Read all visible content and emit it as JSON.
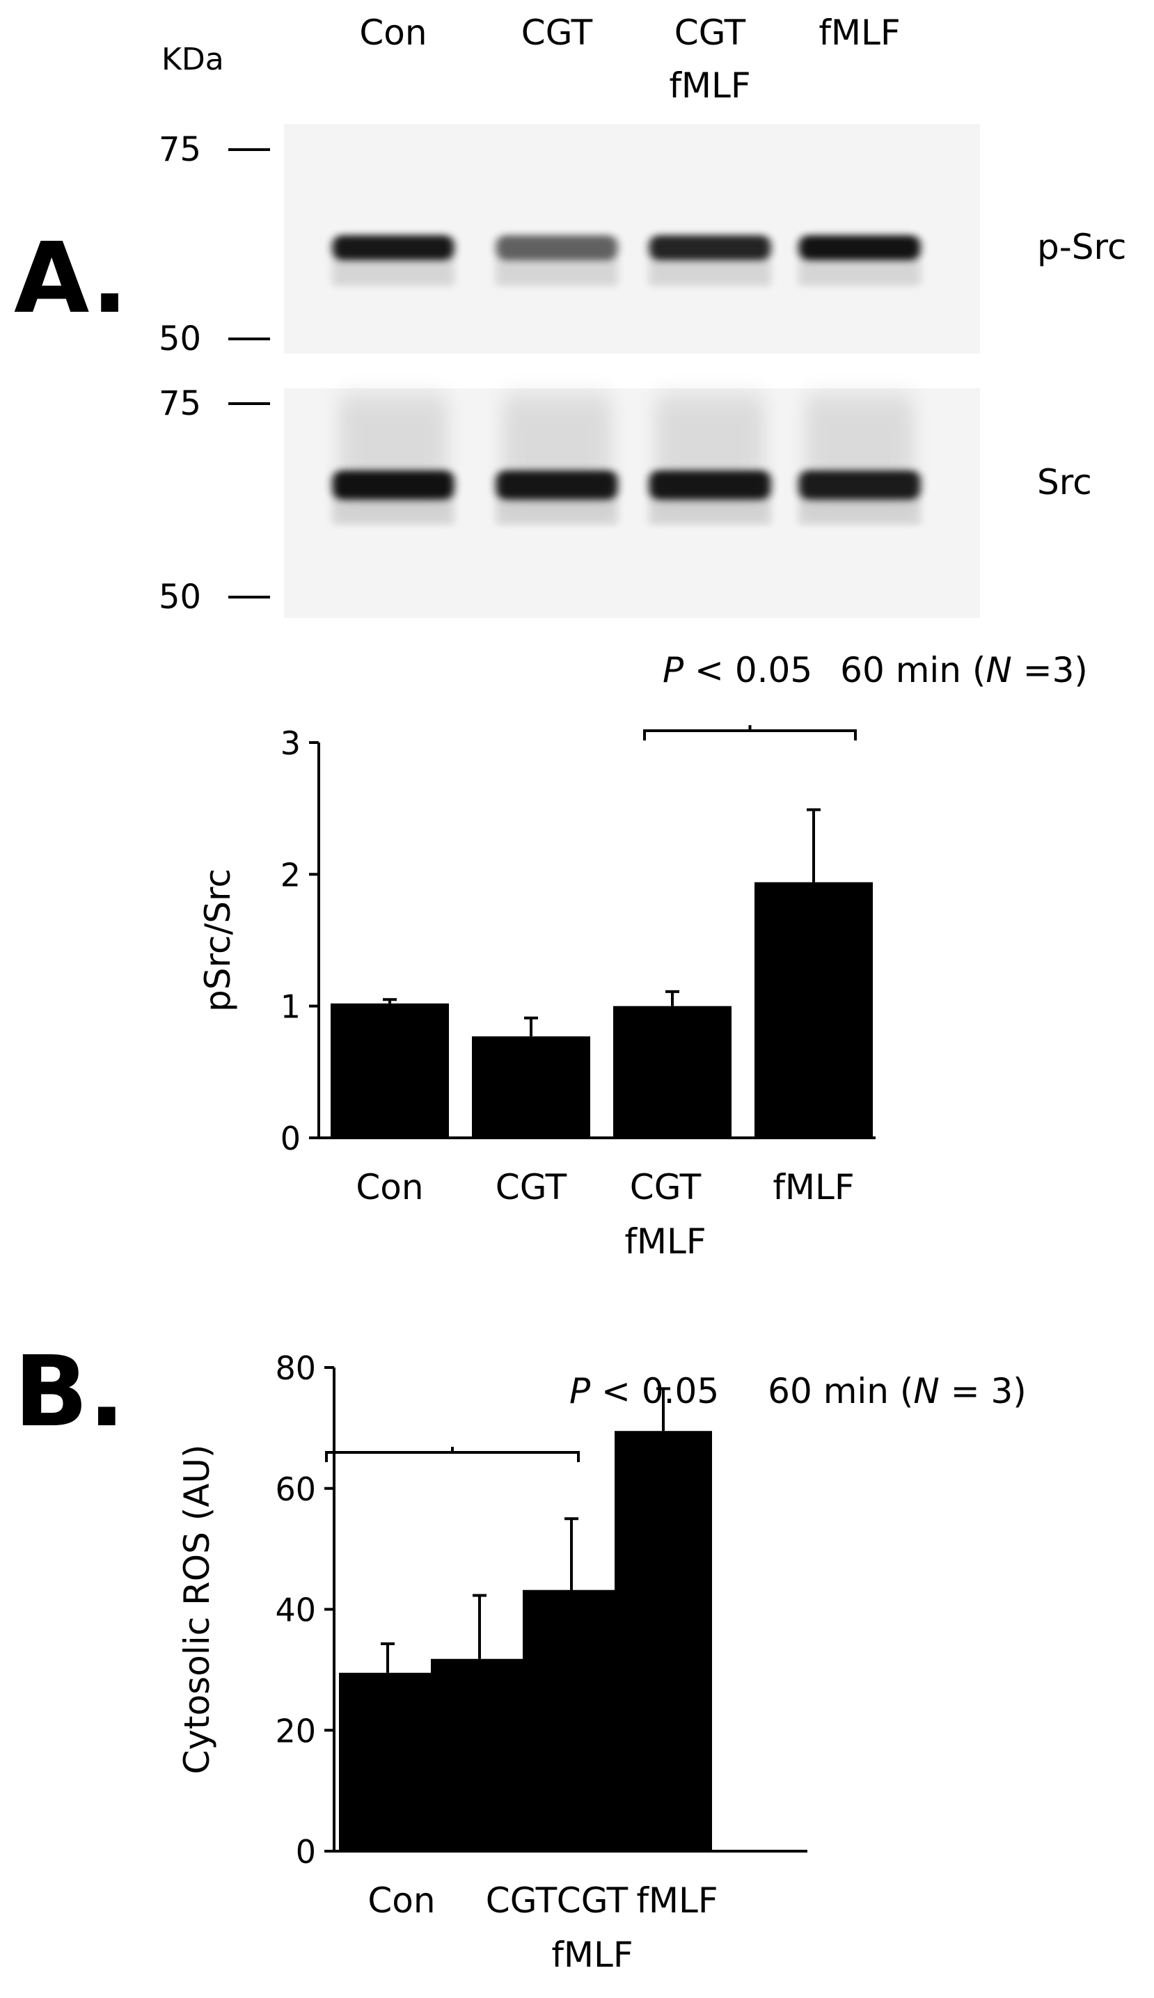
{
  "panel_a": {
    "label": "A.",
    "blot": {
      "kda_label": "KDa",
      "lanes": [
        {
          "line1": "Con",
          "line2": ""
        },
        {
          "line1": "CGT",
          "line2": ""
        },
        {
          "line1": "CGT",
          "line2": "fMLF"
        },
        {
          "line1": "fMLF",
          "line2": ""
        }
      ],
      "strips": [
        {
          "name": "p-Src",
          "marker_top": "75",
          "marker_bottom": "50",
          "band_intensity": [
            0.9,
            0.6,
            0.85,
            0.92
          ]
        },
        {
          "name": "Src",
          "marker_top": "75",
          "marker_bottom": "50",
          "band_intensity": [
            0.92,
            0.9,
            0.9,
            0.88
          ]
        }
      ]
    }
  },
  "panel_b": {
    "label": "B."
  },
  "chart_data": [
    {
      "type": "bar",
      "categories": [
        {
          "line1": "Con",
          "line2": ""
        },
        {
          "line1": "CGT",
          "line2": ""
        },
        {
          "line1": "CGT",
          "line2": "fMLF"
        },
        {
          "line1": "fMLF",
          "line2": ""
        }
      ],
      "values": [
        1.02,
        0.77,
        1.0,
        1.94
      ],
      "errors": [
        0.03,
        0.14,
        0.11,
        0.55
      ],
      "ylabel": "pSrc/Src",
      "ylim": [
        0,
        3
      ],
      "yticks": [
        "0",
        "1",
        "2",
        "3"
      ],
      "bar_color": "#000000",
      "significance": {
        "from": 2,
        "to": 3
      },
      "annotation": {
        "p_italic": "P",
        "p_rest": " < 0.05",
        "time": "60 min (",
        "n_italic": "N",
        "n_rest": " =3)"
      }
    },
    {
      "type": "bar",
      "categories": [
        {
          "line1": "Con",
          "line2": ""
        },
        {
          "line1": "CGT",
          "line2": ""
        },
        {
          "line1": "CGT",
          "line2": "fMLF"
        },
        {
          "line1": "fMLF",
          "line2": ""
        }
      ],
      "values": [
        29.5,
        31.8,
        43.2,
        69.5
      ],
      "errors": [
        4.8,
        10.5,
        11.8,
        7.0
      ],
      "ylabel": "Cytosolic ROS (AU)",
      "ylim": [
        0,
        80
      ],
      "yticks": [
        "0",
        "20",
        "40",
        "60",
        "80"
      ],
      "bar_color": "#000000",
      "significance": {
        "from": 1,
        "to": 2
      },
      "annotation": {
        "p_italic": "P",
        "p_rest": " < 0.05",
        "time": "60 min (",
        "n_italic": "N",
        "n_rest": " = 3)"
      }
    }
  ]
}
